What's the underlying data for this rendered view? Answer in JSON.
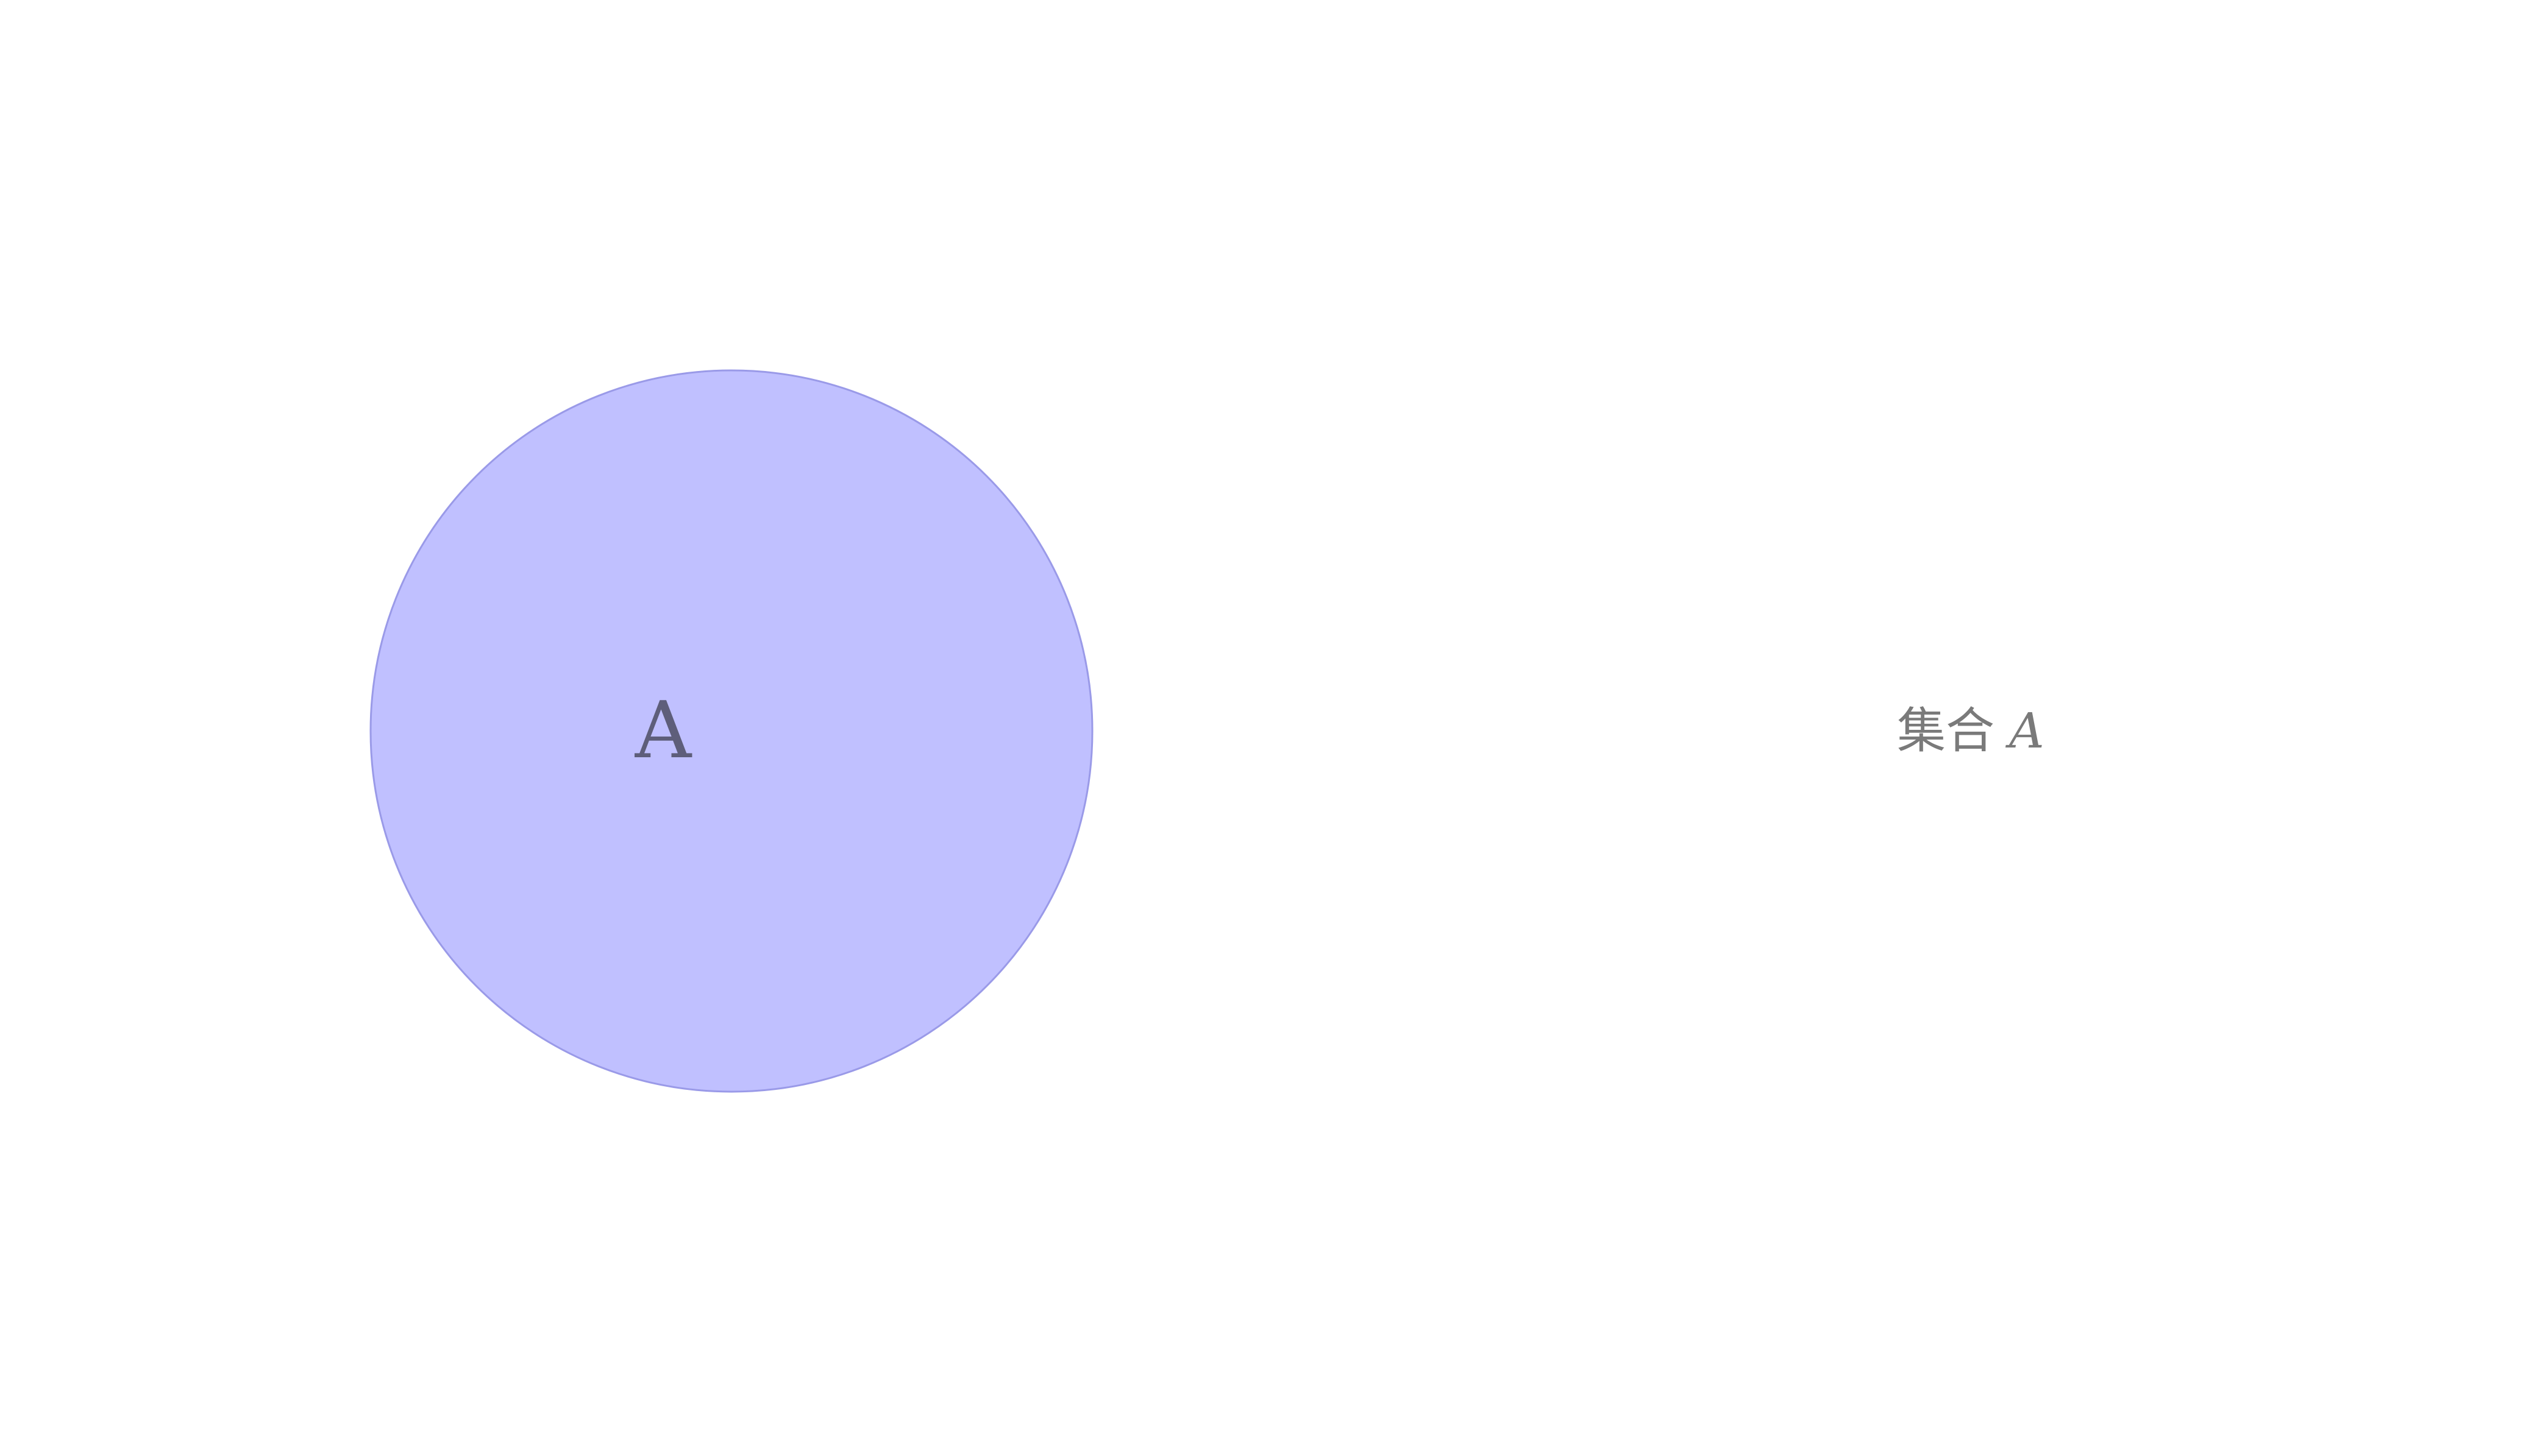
{
  "diagram": {
    "type": "venn",
    "set": {
      "label": "A",
      "fill_color": "#c0c0ff",
      "stroke_color": "#9a9ae8"
    },
    "caption": {
      "prefix": "集合",
      "symbol": "A"
    },
    "background_color": "#ffffff"
  }
}
